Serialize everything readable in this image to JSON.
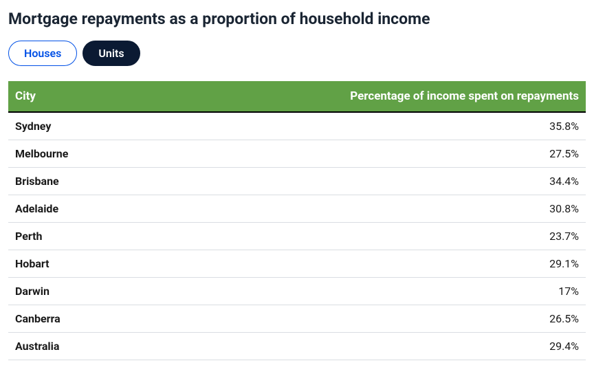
{
  "title": "Mortgage repayments as a proportion of household income",
  "tabs": {
    "inactive": "Houses",
    "active": "Units"
  },
  "table": {
    "type": "table",
    "header_bg": "#61a146",
    "header_text_color": "#ffffff",
    "border_bottom_color": "#000000",
    "row_border_color": "#d9dde2",
    "columns": [
      "City",
      "Percentage of income spent on repayments"
    ],
    "rows": [
      [
        "Sydney",
        "35.8%"
      ],
      [
        "Melbourne",
        "27.5%"
      ],
      [
        "Brisbane",
        "34.4%"
      ],
      [
        "Adelaide",
        "30.8%"
      ],
      [
        "Perth",
        "23.7%"
      ],
      [
        "Hobart",
        "29.1%"
      ],
      [
        "Darwin",
        "17%"
      ],
      [
        "Canberra",
        "26.5%"
      ],
      [
        "Australia",
        "29.4%"
      ]
    ]
  },
  "styling": {
    "title_color": "#1a2533",
    "title_fontsize": 23,
    "tab_inactive_bg": "#ffffff",
    "tab_inactive_color": "#0050e6",
    "tab_active_bg": "#0b1a33",
    "tab_active_color": "#ffffff",
    "cell_font_color": "#1a1a1a"
  }
}
